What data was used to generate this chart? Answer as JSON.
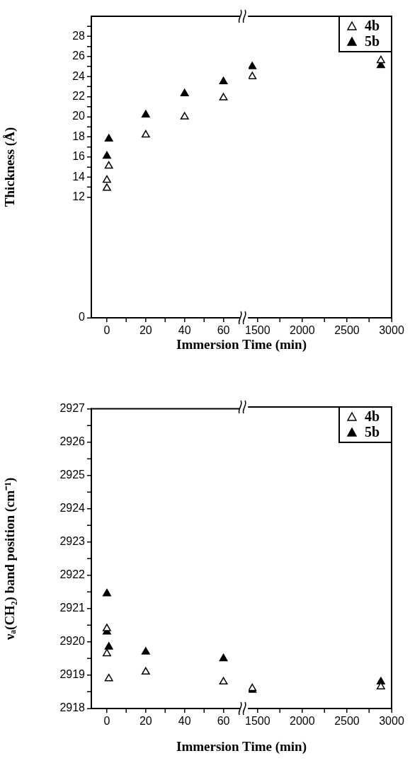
{
  "chart_data": [
    {
      "type": "scatter",
      "ylabel": "Thickness (Å)",
      "xlabel": "Immersion Time (min)",
      "xlim": [
        -8,
        70
      ],
      "ylim": [
        0,
        30
      ],
      "xticks": [
        0,
        {
          "value": 10,
          "label": null
        },
        20,
        {
          "value": 30,
          "label": null
        },
        40,
        {
          "value": 50,
          "label": null
        },
        60
      ],
      "yticks": [
        0,
        12,
        {
          "value": 13,
          "label": null
        },
        14,
        {
          "value": 15,
          "label": null
        },
        16,
        {
          "value": 17,
          "label": null
        },
        18,
        {
          "value": 19,
          "label": null
        },
        20,
        {
          "value": 21,
          "label": null
        },
        22,
        {
          "value": 23,
          "label": null
        },
        24,
        {
          "value": 25,
          "label": null
        },
        26,
        {
          "value": 27,
          "label": null
        },
        28,
        {
          "value": 29,
          "label": null
        }
      ],
      "marker": "triangle",
      "series": [
        {
          "color": "#000000",
          "x": [
            0,
            0,
            1,
            20,
            40,
            60
          ],
          "values": [
            12.9,
            13.7,
            15.1,
            18.2,
            20.0,
            21.9
          ]
        },
        {
          "color": "#000000",
          "x": [
            0,
            1,
            20,
            40,
            60
          ],
          "values": [
            16.1,
            17.8,
            20.2,
            22.3,
            23.5
          ]
        }
      ]
    },
    {
      "type": "scatter",
      "xlim": [
        1400,
        3000
      ],
      "ylim": [
        0,
        30
      ],
      "xticks": [
        1500,
        {
          "value": 1750,
          "label": null
        },
        2000,
        {
          "value": 2250,
          "label": null
        },
        2500,
        {
          "value": 2750,
          "label": null
        },
        3000
      ],
      "tick_labels": "x",
      "marker": "triangle",
      "legend": "top right",
      "series": [
        {
          "name": "4b",
          "color": "#000000",
          "x": [
            1440,
            2880
          ],
          "values": [
            24.0,
            25.6
          ]
        },
        {
          "name": "5b",
          "color": "#000000",
          "x": [
            1440,
            2880
          ],
          "values": [
            25.0,
            25.1
          ]
        }
      ]
    },
    {
      "type": "scatter",
      "ylabel": "νₐ(CH₂) band position (cm⁻¹)",
      "xlabel": "Immersion Time (min)",
      "xlim": [
        -8,
        70
      ],
      "ylim": [
        2918,
        2927
      ],
      "xticks": [
        0,
        {
          "value": 10,
          "label": null
        },
        20,
        {
          "value": 30,
          "label": null
        },
        40,
        {
          "value": 50,
          "label": null
        },
        60
      ],
      "yticks": [
        2918,
        {
          "value": 2918.5,
          "label": null
        },
        2919,
        {
          "value": 2919.5,
          "label": null
        },
        2920,
        {
          "value": 2920.5,
          "label": null
        },
        2921,
        {
          "value": 2921.5,
          "label": null
        },
        2922,
        {
          "value": 2922.5,
          "label": null
        },
        2923,
        {
          "value": 2923.5,
          "label": null
        },
        2924,
        {
          "value": 2924.5,
          "label": null
        },
        2925,
        {
          "value": 2925.5,
          "label": null
        },
        2926,
        {
          "value": 2926.5,
          "label": null
        },
        2927
      ],
      "marker": "triangle",
      "series": [
        {
          "color": "#000000",
          "x": [
            0,
            0,
            1,
            20,
            60
          ],
          "values": [
            2920.4,
            2919.65,
            2918.9,
            2919.1,
            2918.8
          ]
        },
        {
          "color": "#000000",
          "x": [
            0,
            0,
            1,
            20,
            60
          ],
          "values": [
            2921.45,
            2920.3,
            2919.85,
            2919.7,
            2919.5
          ]
        }
      ]
    },
    {
      "type": "scatter",
      "xlim": [
        1400,
        3000
      ],
      "ylim": [
        2918,
        2927
      ],
      "xticks": [
        1500,
        {
          "value": 1750,
          "label": null
        },
        2000,
        {
          "value": 2250,
          "label": null
        },
        2500,
        {
          "value": 2750,
          "label": null
        },
        3000
      ],
      "tick_labels": "x",
      "marker": "triangle",
      "legend": "top right",
      "series": [
        {
          "name": "4b",
          "color": "#000000",
          "x": [
            1440,
            2880
          ],
          "values": [
            2918.6,
            2918.65
          ]
        },
        {
          "name": "5b",
          "color": "#000000",
          "x": [
            1440,
            2880
          ],
          "values": [
            2918.55,
            2918.8
          ]
        }
      ]
    }
  ]
}
